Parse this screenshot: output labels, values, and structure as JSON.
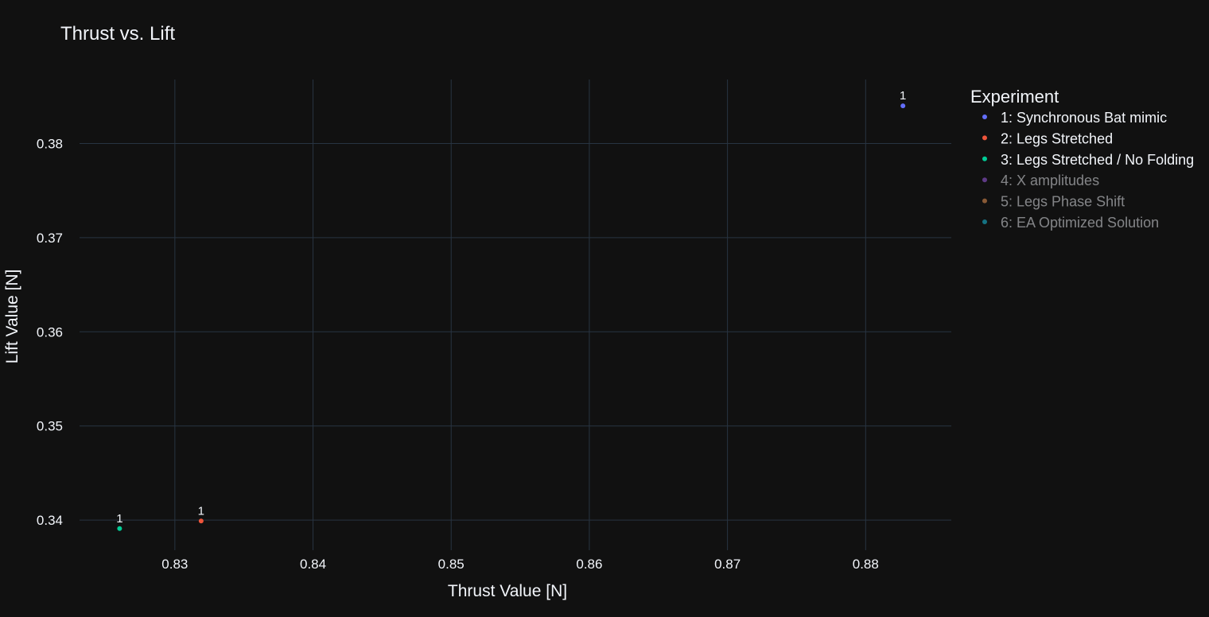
{
  "chart_data": {
    "type": "scatter",
    "title": "Thrust vs. Lift",
    "xlabel": "Thrust Value [N]",
    "ylabel": "Lift Value [N]",
    "xlim": [
      0.8231,
      0.8862
    ],
    "ylim": [
      0.3368,
      0.3868
    ],
    "xticks": [
      0.83,
      0.84,
      0.85,
      0.86,
      0.87,
      0.88
    ],
    "xtick_labels": [
      "0.83",
      "0.84",
      "0.85",
      "0.86",
      "0.87",
      "0.88"
    ],
    "yticks": [
      0.34,
      0.35,
      0.36,
      0.37,
      0.38
    ],
    "ytick_labels": [
      "0.34",
      "0.35",
      "0.36",
      "0.37",
      "0.38"
    ],
    "grid": true,
    "legend_title": "Experiment",
    "legend_position": "right",
    "series": [
      {
        "name": "1: Synchronous Bat mimic",
        "color": "#636efa",
        "visible": true,
        "points": [
          {
            "x": 0.8827,
            "y": 0.384,
            "label": "1"
          }
        ]
      },
      {
        "name": "2: Legs Stretched",
        "color": "#ef553b",
        "visible": true,
        "points": [
          {
            "x": 0.8319,
            "y": 0.3399,
            "label": "1"
          }
        ]
      },
      {
        "name": "3: Legs Stretched / No Folding",
        "color": "#00cc96",
        "visible": true,
        "points": [
          {
            "x": 0.826,
            "y": 0.3391,
            "label": "1"
          }
        ]
      },
      {
        "name": "4: X amplitudes",
        "color": "#ab63fa",
        "visible": false,
        "points": []
      },
      {
        "name": "5: Legs Phase Shift",
        "color": "#ffa15a",
        "visible": false,
        "points": []
      },
      {
        "name": "6: EA Optimized Solution",
        "color": "#19d3f3",
        "visible": false,
        "points": []
      }
    ]
  }
}
